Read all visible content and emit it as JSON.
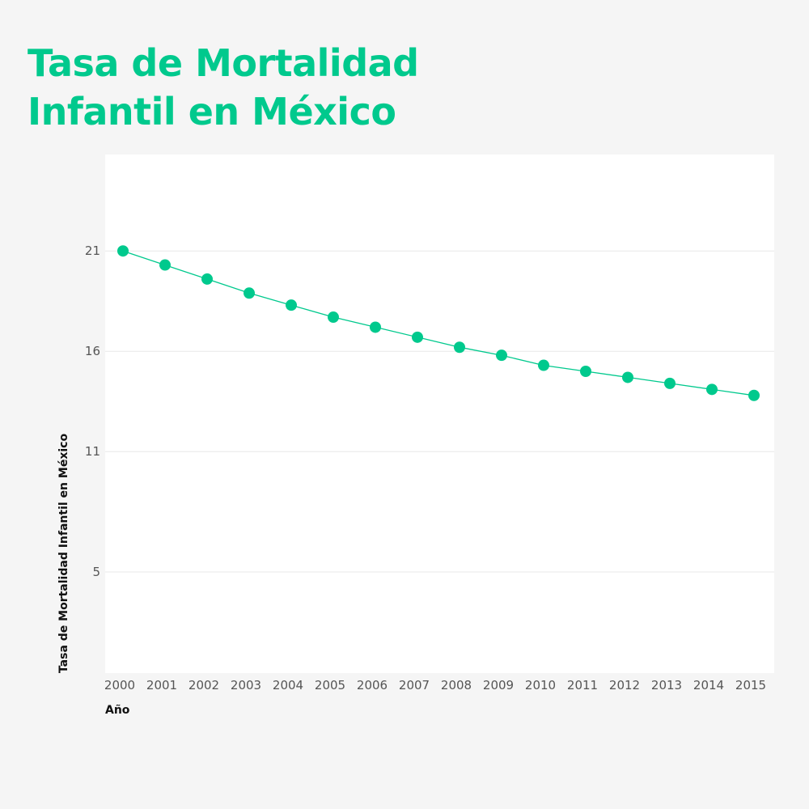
{
  "title": "Tasa de Mortalidad Infantil en México",
  "colors": {
    "accent": "#00c98d",
    "background": "#f5f5f5",
    "plot": "#ffffff",
    "grid": "#e8e8e8"
  },
  "chart_data": {
    "type": "line",
    "title": "Tasa de Mortalidad Infantil en México",
    "xlabel": "Año",
    "ylabel": "Tasa de Mortalidad Infantil en México",
    "x": [
      2000,
      2001,
      2002,
      2003,
      2004,
      2005,
      2006,
      2007,
      2008,
      2009,
      2010,
      2011,
      2012,
      2013,
      2014,
      2015
    ],
    "series": [
      {
        "values": [
          21.0,
          20.3,
          19.6,
          18.9,
          18.3,
          17.7,
          17.2,
          16.7,
          16.2,
          15.8,
          15.3,
          15.0,
          14.7,
          14.4,
          14.1,
          13.8
        ]
      }
    ],
    "yticks": [
      5,
      11,
      16,
      21
    ],
    "ylim": [
      0,
      25
    ],
    "xlim": [
      2000,
      2015
    ],
    "grid": true,
    "marker": "circle"
  }
}
